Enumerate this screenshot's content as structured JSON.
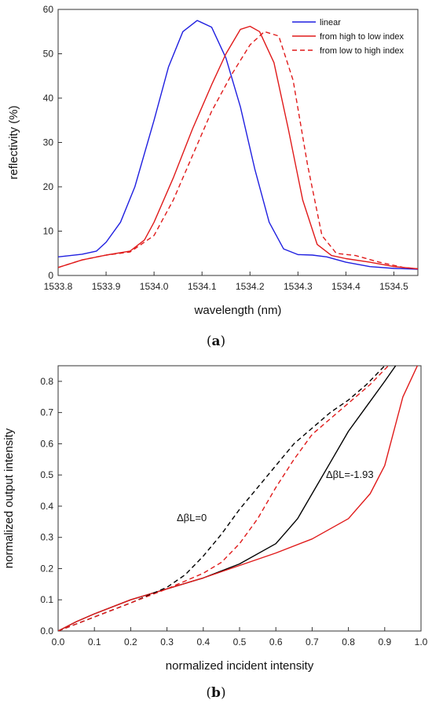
{
  "chart_data": [
    {
      "type": "line",
      "panel_label": "(a)",
      "xlabel": "wavelength (nm)",
      "ylabel": "reflectivity (%)",
      "xlim": [
        1533.8,
        1534.55
      ],
      "ylim": [
        0,
        60
      ],
      "xticks": [
        "1533.8",
        "1533.9",
        "1534.0",
        "1534.1",
        "1534.2",
        "1534.3",
        "1534.4",
        "1534.5"
      ],
      "yticks": [
        "0",
        "10",
        "20",
        "30",
        "40",
        "50",
        "60"
      ],
      "grid": false,
      "legend_position": "top-right",
      "series": [
        {
          "name": "linear",
          "color": "#1f1fe0",
          "style": "solid",
          "x": [
            1533.8,
            1533.85,
            1533.88,
            1533.9,
            1533.93,
            1533.96,
            1534.0,
            1534.03,
            1534.06,
            1534.09,
            1534.12,
            1534.15,
            1534.18,
            1534.21,
            1534.24,
            1534.27,
            1534.3,
            1534.33,
            1534.36,
            1534.4,
            1534.45,
            1534.5,
            1534.55
          ],
          "y": [
            4.2,
            4.8,
            5.5,
            7.5,
            12,
            20,
            35,
            47,
            55,
            57.5,
            56,
            49,
            38,
            24,
            12,
            6,
            4.7,
            4.6,
            4.2,
            3,
            2,
            1.6,
            1.4
          ]
        },
        {
          "name": "from high to low index",
          "color": "#e01a1a",
          "style": "solid",
          "x": [
            1533.8,
            1533.85,
            1533.9,
            1533.95,
            1533.98,
            1534.0,
            1534.04,
            1534.08,
            1534.12,
            1534.15,
            1534.18,
            1534.2,
            1534.22,
            1534.25,
            1534.28,
            1534.31,
            1534.34,
            1534.37,
            1534.4,
            1534.45,
            1534.5,
            1534.55
          ],
          "y": [
            1.8,
            3.5,
            4.6,
            5.5,
            8,
            12,
            22,
            33,
            43,
            50,
            55.5,
            56.2,
            55,
            48,
            33,
            17,
            7,
            4.5,
            3.8,
            3,
            2,
            1.5
          ]
        },
        {
          "name": "from low to high index",
          "color": "#e01a1a",
          "style": "dashed",
          "x": [
            1533.8,
            1533.85,
            1533.9,
            1533.95,
            1534.0,
            1534.04,
            1534.08,
            1534.12,
            1534.16,
            1534.2,
            1534.23,
            1534.26,
            1534.29,
            1534.32,
            1534.35,
            1534.38,
            1534.42,
            1534.47,
            1534.52,
            1534.55
          ],
          "y": [
            1.8,
            3.5,
            4.6,
            5.3,
            9,
            17,
            27,
            37,
            45,
            52,
            55,
            54,
            44,
            25,
            9,
            5,
            4.5,
            3,
            1.8,
            1.5
          ]
        }
      ]
    },
    {
      "type": "line",
      "panel_label": "(b)",
      "xlabel": "normalized incident intensity",
      "ylabel": "normalized output intensity",
      "xlim": [
        0,
        1
      ],
      "ylim": [
        0,
        0.85
      ],
      "xticks": [
        "0.0",
        "0.1",
        "0.2",
        "0.3",
        "0.4",
        "0.5",
        "0.6",
        "0.7",
        "0.8",
        "0.9",
        "1.0"
      ],
      "yticks": [
        "0.0",
        "0.1",
        "0.2",
        "0.3",
        "0.4",
        "0.5",
        "0.6",
        "0.7",
        "0.8"
      ],
      "grid": false,
      "annotations": [
        "ΔβL=0",
        "ΔβL=-1.93"
      ],
      "series": [
        {
          "color": "#000000",
          "style": "solid",
          "x": [
            0,
            0.05,
            0.1,
            0.2,
            0.3,
            0.4,
            0.5,
            0.6,
            0.63,
            0.66,
            0.7,
            0.75,
            0.8,
            0.85,
            0.9,
            0.93
          ],
          "y": [
            0,
            0.03,
            0.055,
            0.1,
            0.135,
            0.17,
            0.215,
            0.28,
            0.32,
            0.36,
            0.44,
            0.54,
            0.64,
            0.72,
            0.8,
            0.85
          ]
        },
        {
          "color": "#e01a1a",
          "style": "solid",
          "x": [
            0,
            0.05,
            0.1,
            0.2,
            0.3,
            0.4,
            0.5,
            0.6,
            0.7,
            0.8,
            0.86,
            0.9,
            0.95,
            0.99
          ],
          "y": [
            0,
            0.03,
            0.055,
            0.1,
            0.135,
            0.17,
            0.21,
            0.25,
            0.295,
            0.36,
            0.44,
            0.53,
            0.75,
            0.85
          ]
        },
        {
          "color": "#000000",
          "style": "dashed",
          "x": [
            0,
            0.1,
            0.2,
            0.3,
            0.35,
            0.4,
            0.45,
            0.5,
            0.55,
            0.6,
            0.65,
            0.7,
            0.75,
            0.8,
            0.85,
            0.9
          ],
          "y": [
            0,
            0.045,
            0.09,
            0.14,
            0.18,
            0.24,
            0.31,
            0.39,
            0.46,
            0.53,
            0.6,
            0.65,
            0.7,
            0.74,
            0.79,
            0.85
          ]
        },
        {
          "color": "#e01a1a",
          "style": "dashed",
          "x": [
            0,
            0.1,
            0.2,
            0.3,
            0.4,
            0.45,
            0.5,
            0.55,
            0.6,
            0.65,
            0.7,
            0.75,
            0.8,
            0.86,
            0.91
          ],
          "y": [
            0,
            0.045,
            0.09,
            0.135,
            0.185,
            0.22,
            0.28,
            0.36,
            0.46,
            0.55,
            0.63,
            0.68,
            0.73,
            0.79,
            0.85
          ]
        }
      ]
    }
  ]
}
